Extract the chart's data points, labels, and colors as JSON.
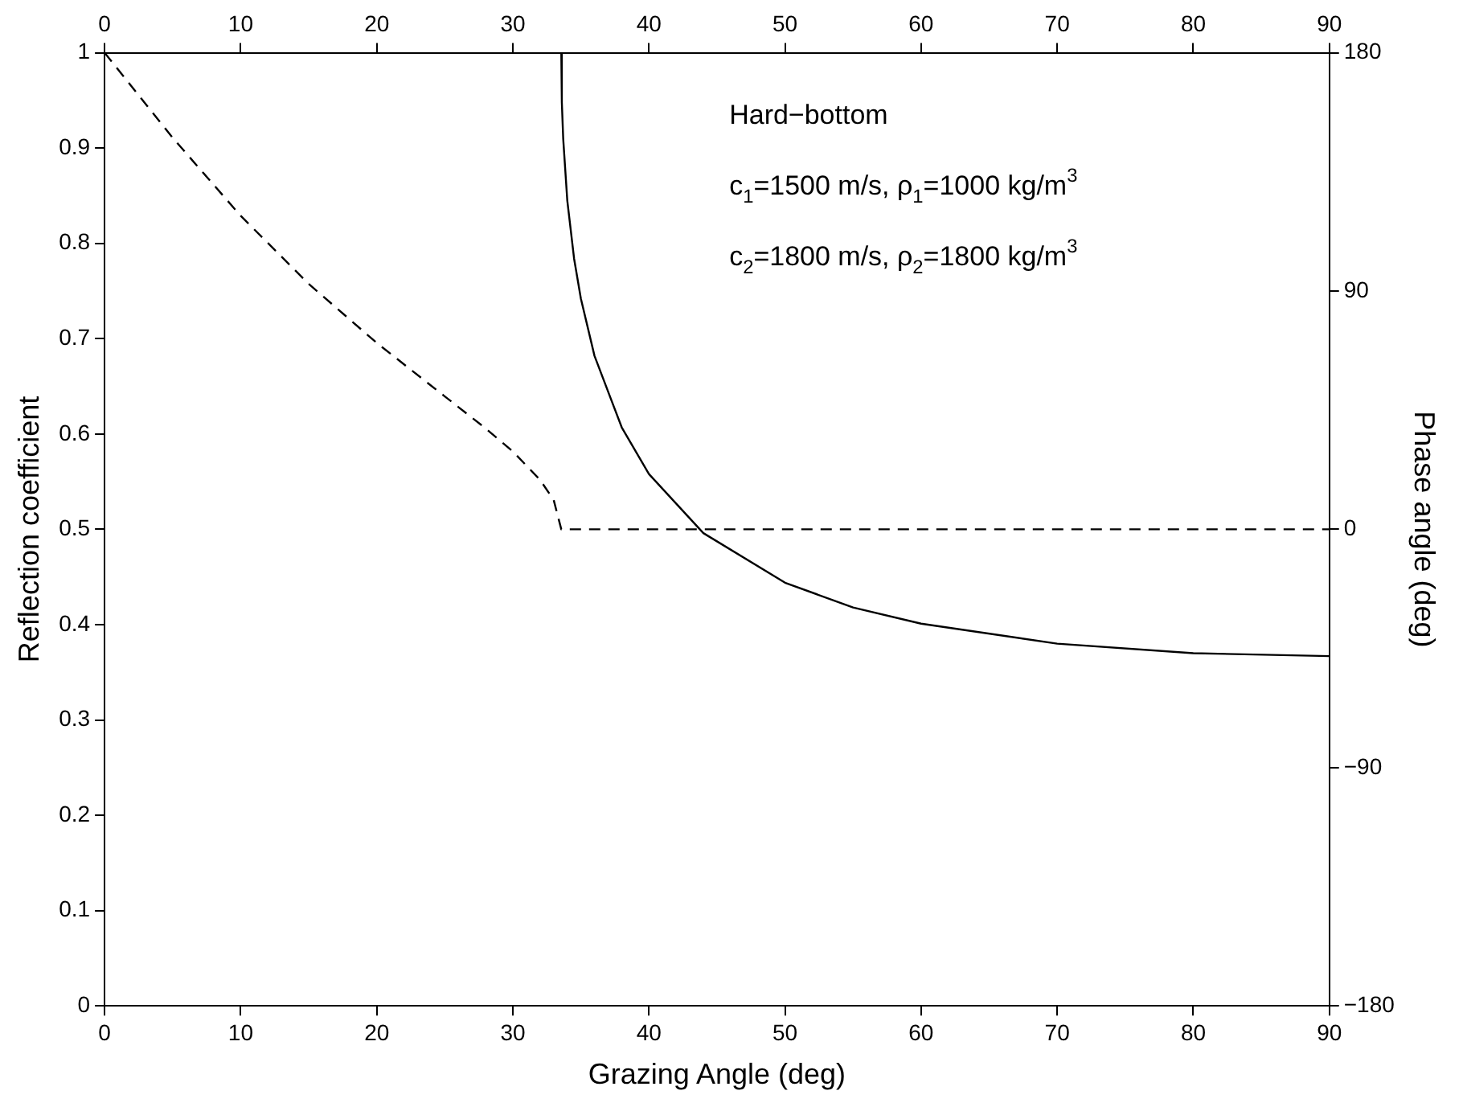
{
  "chart_data": {
    "type": "line",
    "xlabel": "Grazing Angle (deg)",
    "ylabel": "Reflection coefficient",
    "y2label": "Phase angle (deg)",
    "xlim": [
      0,
      90
    ],
    "xticks": [
      0,
      10,
      20,
      30,
      40,
      50,
      60,
      70,
      80,
      90
    ],
    "x2lim": [
      0,
      90
    ],
    "x2ticks": [
      0,
      10,
      20,
      30,
      40,
      50,
      60,
      70,
      80,
      90
    ],
    "ylim": [
      0,
      1
    ],
    "yticks": [
      0,
      0.1,
      0.2,
      0.3,
      0.4,
      0.5,
      0.6,
      0.7,
      0.8,
      0.9,
      1
    ],
    "y2lim": [
      -180,
      180
    ],
    "y2ticks": [
      -180,
      -90,
      0,
      90,
      180
    ],
    "grid": false,
    "legend": false,
    "marker": "none",
    "series": [
      {
        "color": "#000000",
        "line_style": "solid",
        "x": [
          0,
          33.56,
          33.6,
          33.7,
          34,
          34.5,
          35,
          36,
          38,
          40,
          44,
          50,
          55,
          60,
          70,
          80,
          90
        ],
        "values": [
          1,
          1,
          0.948,
          0.91,
          0.845,
          0.784,
          0.742,
          0.682,
          0.607,
          0.558,
          0.496,
          0.444,
          0.418,
          0.401,
          0.38,
          0.37,
          0.367
        ]
      },
      {
        "color": "#000000",
        "line_style": "dashed",
        "axis": "y2",
        "x": [
          0,
          5,
          10,
          15,
          20,
          25,
          28,
          30,
          32,
          33,
          33.56,
          90
        ],
        "values": [
          180,
          147.9,
          118.4,
          92.7,
          70.4,
          50.2,
          38.1,
          29.4,
          18.7,
          11.1,
          0,
          0
        ]
      }
    ],
    "annotations": [
      "Hard−bottom",
      "c$_{1}$=1500 m/s, ρ$_{1}$=1000 kg/m$^{3}$",
      "c$_{2}$=1800 m/s, ρ$_{2}$=1800 kg/m$^{3}$"
    ]
  }
}
